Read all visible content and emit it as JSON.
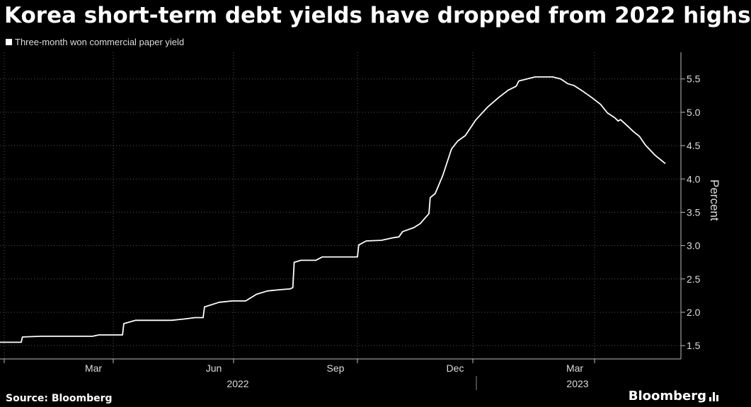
{
  "chart_data": {
    "type": "line",
    "title": "Korea short-term debt yields have dropped from 2022 highs",
    "legend_position": "top-left",
    "ylabel": "Percent",
    "ylim": [
      1.3,
      5.9
    ],
    "y_ticks": [
      "1.5",
      "2.0",
      "2.5",
      "3.0",
      "3.5",
      "4.0",
      "4.5",
      "5.0",
      "5.5"
    ],
    "x_tick_labels": [
      "Mar",
      "Jun",
      "Sep",
      "Dec",
      "Mar"
    ],
    "x_year_labels": [
      "2022",
      "2023"
    ],
    "xlim": [
      "2022-01-01",
      "2023-05-31"
    ],
    "grid": true,
    "series": [
      {
        "name": "Three-month won commercial paper yield",
        "color": "#ffffff",
        "points": [
          [
            "2022-01-01",
            1.55
          ],
          [
            "2022-01-15",
            1.55
          ],
          [
            "2022-01-16",
            1.63
          ],
          [
            "2022-02-01",
            1.64
          ],
          [
            "2022-03-01",
            1.64
          ],
          [
            "2022-03-15",
            1.64
          ],
          [
            "2022-03-20",
            1.66
          ],
          [
            "2022-04-08",
            1.66
          ],
          [
            "2022-04-09",
            1.83
          ],
          [
            "2022-04-18",
            1.88
          ],
          [
            "2022-05-15",
            1.88
          ],
          [
            "2022-05-25",
            1.9
          ],
          [
            "2022-06-02",
            1.92
          ],
          [
            "2022-06-08",
            1.92
          ],
          [
            "2022-06-09",
            2.08
          ],
          [
            "2022-06-20",
            2.15
          ],
          [
            "2022-06-30",
            2.17
          ],
          [
            "2022-07-10",
            2.17
          ],
          [
            "2022-07-18",
            2.27
          ],
          [
            "2022-07-26",
            2.32
          ],
          [
            "2022-08-05",
            2.34
          ],
          [
            "2022-08-12",
            2.35
          ],
          [
            "2022-08-14",
            2.37
          ],
          [
            "2022-08-15",
            2.75
          ],
          [
            "2022-08-20",
            2.78
          ],
          [
            "2022-08-31",
            2.78
          ],
          [
            "2022-09-05",
            2.83
          ],
          [
            "2022-10-01",
            2.83
          ],
          [
            "2022-10-02",
            3.01
          ],
          [
            "2022-10-08",
            3.07
          ],
          [
            "2022-10-20",
            3.08
          ],
          [
            "2022-10-30",
            3.12
          ],
          [
            "2022-11-03",
            3.13
          ],
          [
            "2022-11-06",
            3.21
          ],
          [
            "2022-11-15",
            3.27
          ],
          [
            "2022-11-20",
            3.33
          ],
          [
            "2022-11-27",
            3.48
          ],
          [
            "2022-11-28",
            3.72
          ],
          [
            "2022-12-02",
            3.78
          ],
          [
            "2022-12-08",
            4.05
          ],
          [
            "2022-12-15",
            4.45
          ],
          [
            "2022-12-20",
            4.57
          ],
          [
            "2022-12-26",
            4.65
          ],
          [
            "2023-01-03",
            4.88
          ],
          [
            "2023-01-12",
            5.08
          ],
          [
            "2023-01-20",
            5.22
          ],
          [
            "2023-01-27",
            5.33
          ],
          [
            "2023-02-02",
            5.39
          ],
          [
            "2023-02-04",
            5.47
          ],
          [
            "2023-02-10",
            5.5
          ],
          [
            "2023-02-16",
            5.53
          ],
          [
            "2023-03-01",
            5.53
          ],
          [
            "2023-03-07",
            5.5
          ],
          [
            "2023-03-12",
            5.43
          ],
          [
            "2023-03-17",
            5.4
          ],
          [
            "2023-03-23",
            5.32
          ],
          [
            "2023-03-30",
            5.22
          ],
          [
            "2023-04-06",
            5.12
          ],
          [
            "2023-04-12",
            4.99
          ],
          [
            "2023-04-18",
            4.92
          ],
          [
            "2023-04-21",
            4.87
          ],
          [
            "2023-04-23",
            4.89
          ],
          [
            "2023-04-28",
            4.81
          ],
          [
            "2023-05-04",
            4.71
          ],
          [
            "2023-05-09",
            4.64
          ],
          [
            "2023-05-14",
            4.51
          ],
          [
            "2023-05-22",
            4.36
          ],
          [
            "2023-05-31",
            4.23
          ]
        ]
      }
    ],
    "source": "Source: Bloomberg",
    "brand": "Bloomberg"
  }
}
